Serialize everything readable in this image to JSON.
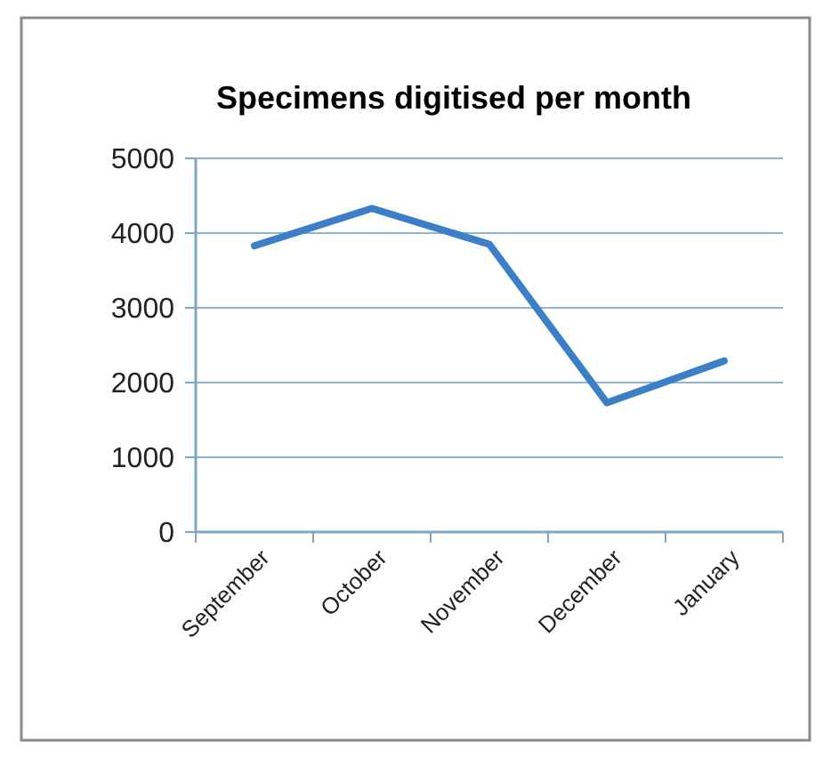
{
  "chart_data": {
    "type": "line",
    "title": "Specimens digitised per month",
    "categories": [
      "September",
      "October",
      "November",
      "December",
      "January"
    ],
    "series": [
      {
        "color": "#3a7fc8",
        "values": [
          3830,
          4330,
          3850,
          1730,
          2290
        ]
      }
    ],
    "ylim": [
      0,
      5000
    ],
    "yticks": [
      0,
      1000,
      2000,
      3000,
      4000,
      5000
    ],
    "grid": "y",
    "marker": "none",
    "line_style": "solid"
  }
}
